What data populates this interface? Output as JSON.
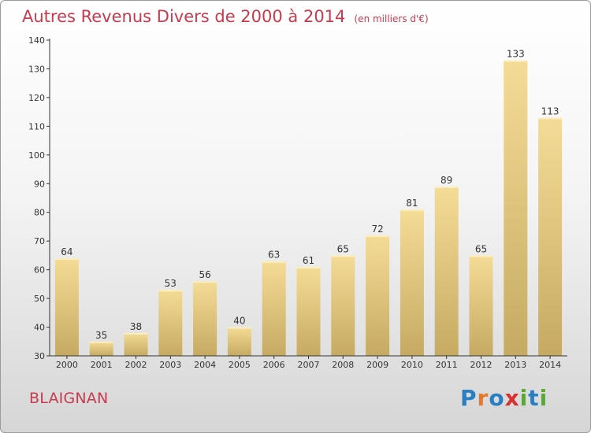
{
  "page": {
    "commune": "BLAIGNAN",
    "logo_text": [
      "P",
      "r",
      "o",
      "x",
      "i",
      "t",
      "i"
    ],
    "logo_colors": [
      "#2a7fc2",
      "#e7782b",
      "#2a7fc2",
      "#d82f2f",
      "#5aa836",
      "#2a7fc2",
      "#5aa836"
    ]
  },
  "chart_data": {
    "type": "bar",
    "title": "Autres Revenus Divers de 2000 à 2014",
    "unit": "(en milliers d'€)",
    "xlabel": "",
    "ylabel": "",
    "categories": [
      "2000",
      "2001",
      "2002",
      "2003",
      "2004",
      "2005",
      "2006",
      "2007",
      "2008",
      "2009",
      "2010",
      "2011",
      "2012",
      "2013",
      "2014"
    ],
    "values": [
      64,
      35,
      38,
      53,
      56,
      40,
      63,
      61,
      65,
      72,
      81,
      89,
      65,
      133,
      113
    ],
    "ylim": [
      30,
      140
    ],
    "yticks": [
      30,
      40,
      50,
      60,
      70,
      80,
      90,
      100,
      110,
      120,
      130,
      140
    ],
    "grid": false,
    "legend": "none",
    "colors": {
      "bar_top": "#f5dc96",
      "bar_bottom": "#c6aa62",
      "axis": "#333333",
      "label": "#333333",
      "title": "#c83a4e"
    }
  }
}
